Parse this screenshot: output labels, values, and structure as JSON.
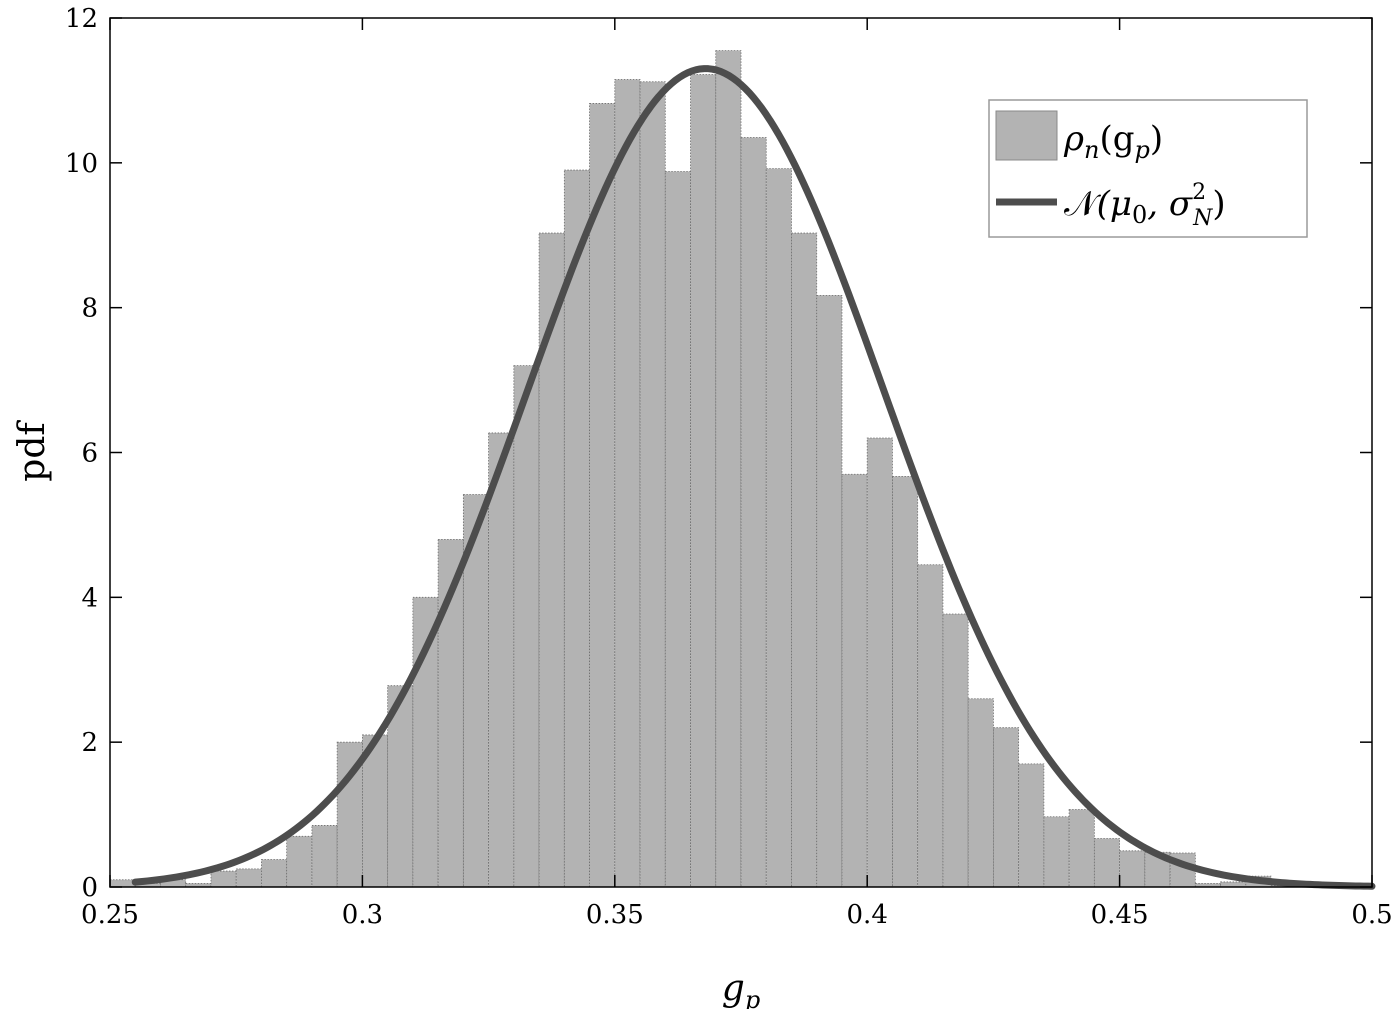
{
  "chart_data": {
    "type": "bar",
    "title": "",
    "xlabel": "g_p",
    "ylabel": "pdf",
    "xlim": [
      0.25,
      0.5
    ],
    "ylim": [
      0,
      12
    ],
    "xticks": [
      "0.25",
      "0.3",
      "0.35",
      "0.4",
      "0.45",
      "0.5"
    ],
    "yticks": [
      "0",
      "2",
      "4",
      "6",
      "8",
      "10",
      "12"
    ],
    "grid": false,
    "legend_position": "top-right",
    "colors": {
      "bars": "#b3b3b3",
      "bar_edge": "#6e6e6e",
      "curve": "#4d4d4d"
    },
    "histogram": {
      "name": "ρn(gp)",
      "bin_start": 0.25,
      "bin_width": 0.005,
      "values": [
        0.1,
        0.05,
        0.1,
        0.05,
        0.22,
        0.25,
        0.38,
        0.7,
        0.85,
        2.0,
        2.1,
        2.78,
        4.0,
        4.8,
        5.42,
        6.27,
        7.2,
        9.03,
        9.9,
        10.82,
        11.15,
        11.12,
        9.88,
        11.22,
        11.55,
        10.35,
        9.92,
        9.03,
        8.17,
        5.7,
        6.2,
        5.67,
        4.45,
        3.77,
        2.6,
        2.2,
        1.7,
        0.97,
        1.07,
        0.67,
        0.5,
        0.48,
        0.47,
        0.05,
        0.07,
        0.15,
        0.02,
        0.0,
        0.0,
        0.0
      ]
    },
    "curve": {
      "name": "N(μ0, σN²)",
      "type": "normal",
      "mean": 0.368,
      "std": 0.0353,
      "x_start": 0.255,
      "x_end": 0.5
    },
    "legend": {
      "hist_rho": "ρ",
      "hist_sub_n": "n",
      "hist_open": "(g",
      "hist_sub_p": "p",
      "hist_close": ")",
      "curve_n": "𝒩",
      "curve_open": "(μ",
      "curve_sub_0": "0",
      "curve_sep": ", σ",
      "curve_sup_2": "2",
      "curve_sub_N": "N",
      "curve_close": ")"
    },
    "axis_labels": {
      "y_text": "pdf",
      "x_main": "g",
      "x_sub": "p"
    }
  }
}
